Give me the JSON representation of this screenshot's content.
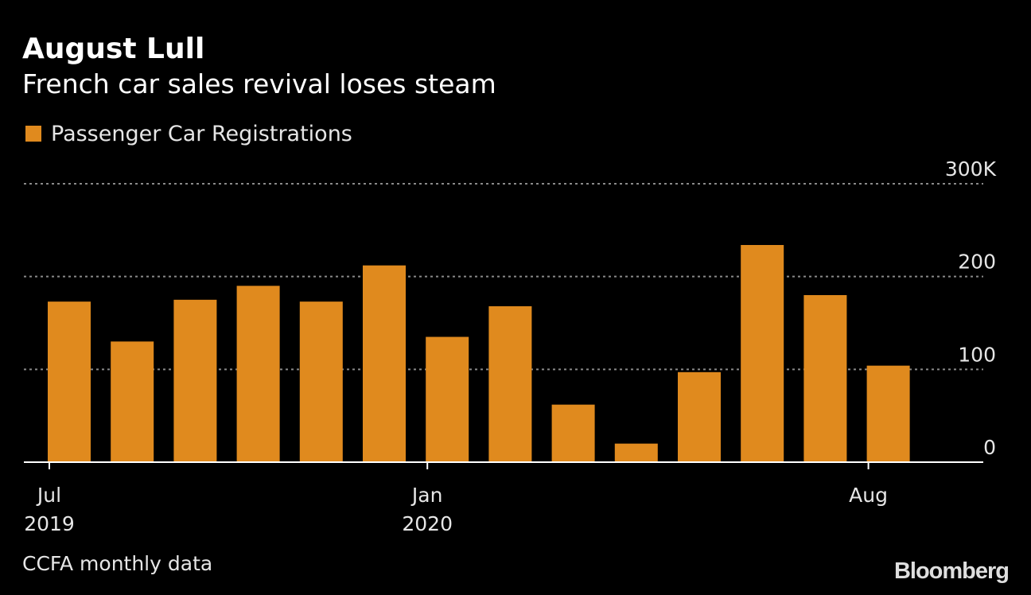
{
  "header": {
    "title": "August Lull",
    "subtitle": "French car sales revival loses steam"
  },
  "footer": {
    "source": "CCFA monthly data",
    "brand": "Bloomberg"
  },
  "chart_data": {
    "type": "bar",
    "categories": [
      "Jul 2019",
      "Aug 2019",
      "Sep 2019",
      "Oct 2019",
      "Nov 2019",
      "Dec 2019",
      "Jan 2020",
      "Feb 2020",
      "Mar 2020",
      "Apr 2020",
      "May 2020",
      "Jun 2020",
      "Jul 2020",
      "Aug 2020"
    ],
    "series": [
      {
        "name": "Passenger Car Registrations",
        "values": [
          173,
          130,
          175,
          190,
          173,
          212,
          135,
          168,
          62,
          20,
          97,
          234,
          180,
          104
        ],
        "color": "#e08a1e"
      }
    ],
    "ylim": [
      0,
      300
    ],
    "y_ticks": [
      {
        "value": 0,
        "label": "0"
      },
      {
        "value": 100,
        "label": "100"
      },
      {
        "value": 200,
        "label": "200"
      },
      {
        "value": 300,
        "label": "300K"
      }
    ],
    "x_ticks": [
      {
        "index": 0,
        "line1": "Jul",
        "line2": "2019"
      },
      {
        "index": 6,
        "line1": "Jan",
        "line2": "2020"
      },
      {
        "index": 13,
        "line1": "Aug",
        "line2": ""
      }
    ],
    "grid": true,
    "gridline_color": "#8a8a8a",
    "legend_position": "top-left"
  }
}
